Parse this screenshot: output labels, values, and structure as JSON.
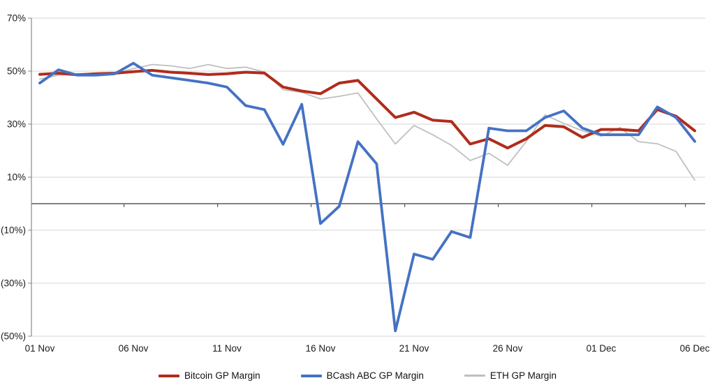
{
  "chart_data": {
    "type": "line",
    "title": "",
    "x_dates": [
      "01 Nov",
      "02 Nov",
      "03 Nov",
      "04 Nov",
      "05 Nov",
      "06 Nov",
      "07 Nov",
      "08 Nov",
      "09 Nov",
      "10 Nov",
      "11 Nov",
      "12 Nov",
      "13 Nov",
      "14 Nov",
      "15 Nov",
      "16 Nov",
      "17 Nov",
      "18 Nov",
      "19 Nov",
      "20 Nov",
      "21 Nov",
      "22 Nov",
      "23 Nov",
      "24 Nov",
      "25 Nov",
      "26 Nov",
      "27 Nov",
      "28 Nov",
      "29 Nov",
      "30 Nov",
      "01 Dec",
      "02 Dec",
      "03 Dec",
      "04 Dec",
      "05 Dec",
      "06 Dec"
    ],
    "series": [
      {
        "name": "Bitcoin GP Margin",
        "color": "#B02C1C",
        "values": [
          48.8,
          49.2,
          48.6,
          49.0,
          49.2,
          49.8,
          50.3,
          49.6,
          49.2,
          48.7,
          49.0,
          49.6,
          49.3,
          44.0,
          42.5,
          41.5,
          45.5,
          46.5,
          39.5,
          32.5,
          34.5,
          31.5,
          31.0,
          22.5,
          24.5,
          21.0,
          24.5,
          29.5,
          29.0,
          25.0,
          28.0,
          28.0,
          27.5,
          35.5,
          33.0,
          27.5
        ]
      },
      {
        "name": "BCash ABC GP Margin",
        "color": "#4472C4",
        "values": [
          45.5,
          50.5,
          48.5,
          48.5,
          49.0,
          53.0,
          48.5,
          47.5,
          46.5,
          45.5,
          44.0,
          37.0,
          35.5,
          22.4,
          37.5,
          -7.5,
          -1.0,
          23.4,
          15.0,
          -48.0,
          -19.0,
          -21.0,
          -10.5,
          -12.8,
          28.5,
          27.5,
          27.5,
          32.5,
          35.0,
          28.5,
          26.0,
          26.0,
          26.0,
          36.5,
          32.5,
          23.5
        ]
      },
      {
        "name": "ETH GP Margin",
        "color": "#BFBFBF",
        "values": [
          47.0,
          48.5,
          49.0,
          48.5,
          49.0,
          51.0,
          52.5,
          52.0,
          51.0,
          52.5,
          51.0,
          51.5,
          49.7,
          43.0,
          42.0,
          39.5,
          40.5,
          41.8,
          32.0,
          22.5,
          29.5,
          26.0,
          22.0,
          16.3,
          19.0,
          14.5,
          23.5,
          33.5,
          30.3,
          27.5,
          25.5,
          28.7,
          23.4,
          22.6,
          19.7,
          8.9
        ]
      }
    ],
    "y_ticks": [
      {
        "value": 70,
        "label": "70%"
      },
      {
        "value": 50,
        "label": "50%"
      },
      {
        "value": 30,
        "label": "30%"
      },
      {
        "value": 10,
        "label": "10%"
      },
      {
        "value": -10,
        "label": "(10%)"
      },
      {
        "value": -30,
        "label": "(30%)"
      },
      {
        "value": -50,
        "label": "(50%)"
      }
    ],
    "x_tick_labels": [
      {
        "index": 0,
        "label": "01 Nov"
      },
      {
        "index": 5,
        "label": "06 Nov"
      },
      {
        "index": 10,
        "label": "11 Nov"
      },
      {
        "index": 15,
        "label": "16 Nov"
      },
      {
        "index": 20,
        "label": "21 Nov"
      },
      {
        "index": 25,
        "label": "26 Nov"
      },
      {
        "index": 30,
        "label": "01 Dec"
      },
      {
        "index": 35,
        "label": "06 Dec"
      }
    ],
    "ylim": [
      -50,
      70
    ],
    "grid": true,
    "legend_position": "bottom"
  },
  "legend": {
    "items": [
      {
        "label": "Bitcoin GP Margin",
        "color": "#B02C1C"
      },
      {
        "label": "BCash ABC GP Margin",
        "color": "#4472C4"
      },
      {
        "label": "ETH GP Margin",
        "color": "#BFBFBF"
      }
    ]
  },
  "style_colors": {
    "gridline": "#D6D6D6",
    "zero_axis": "#595959",
    "y_axis": "#898989",
    "tick": "#595959",
    "label_text": "#1a1a1a"
  }
}
